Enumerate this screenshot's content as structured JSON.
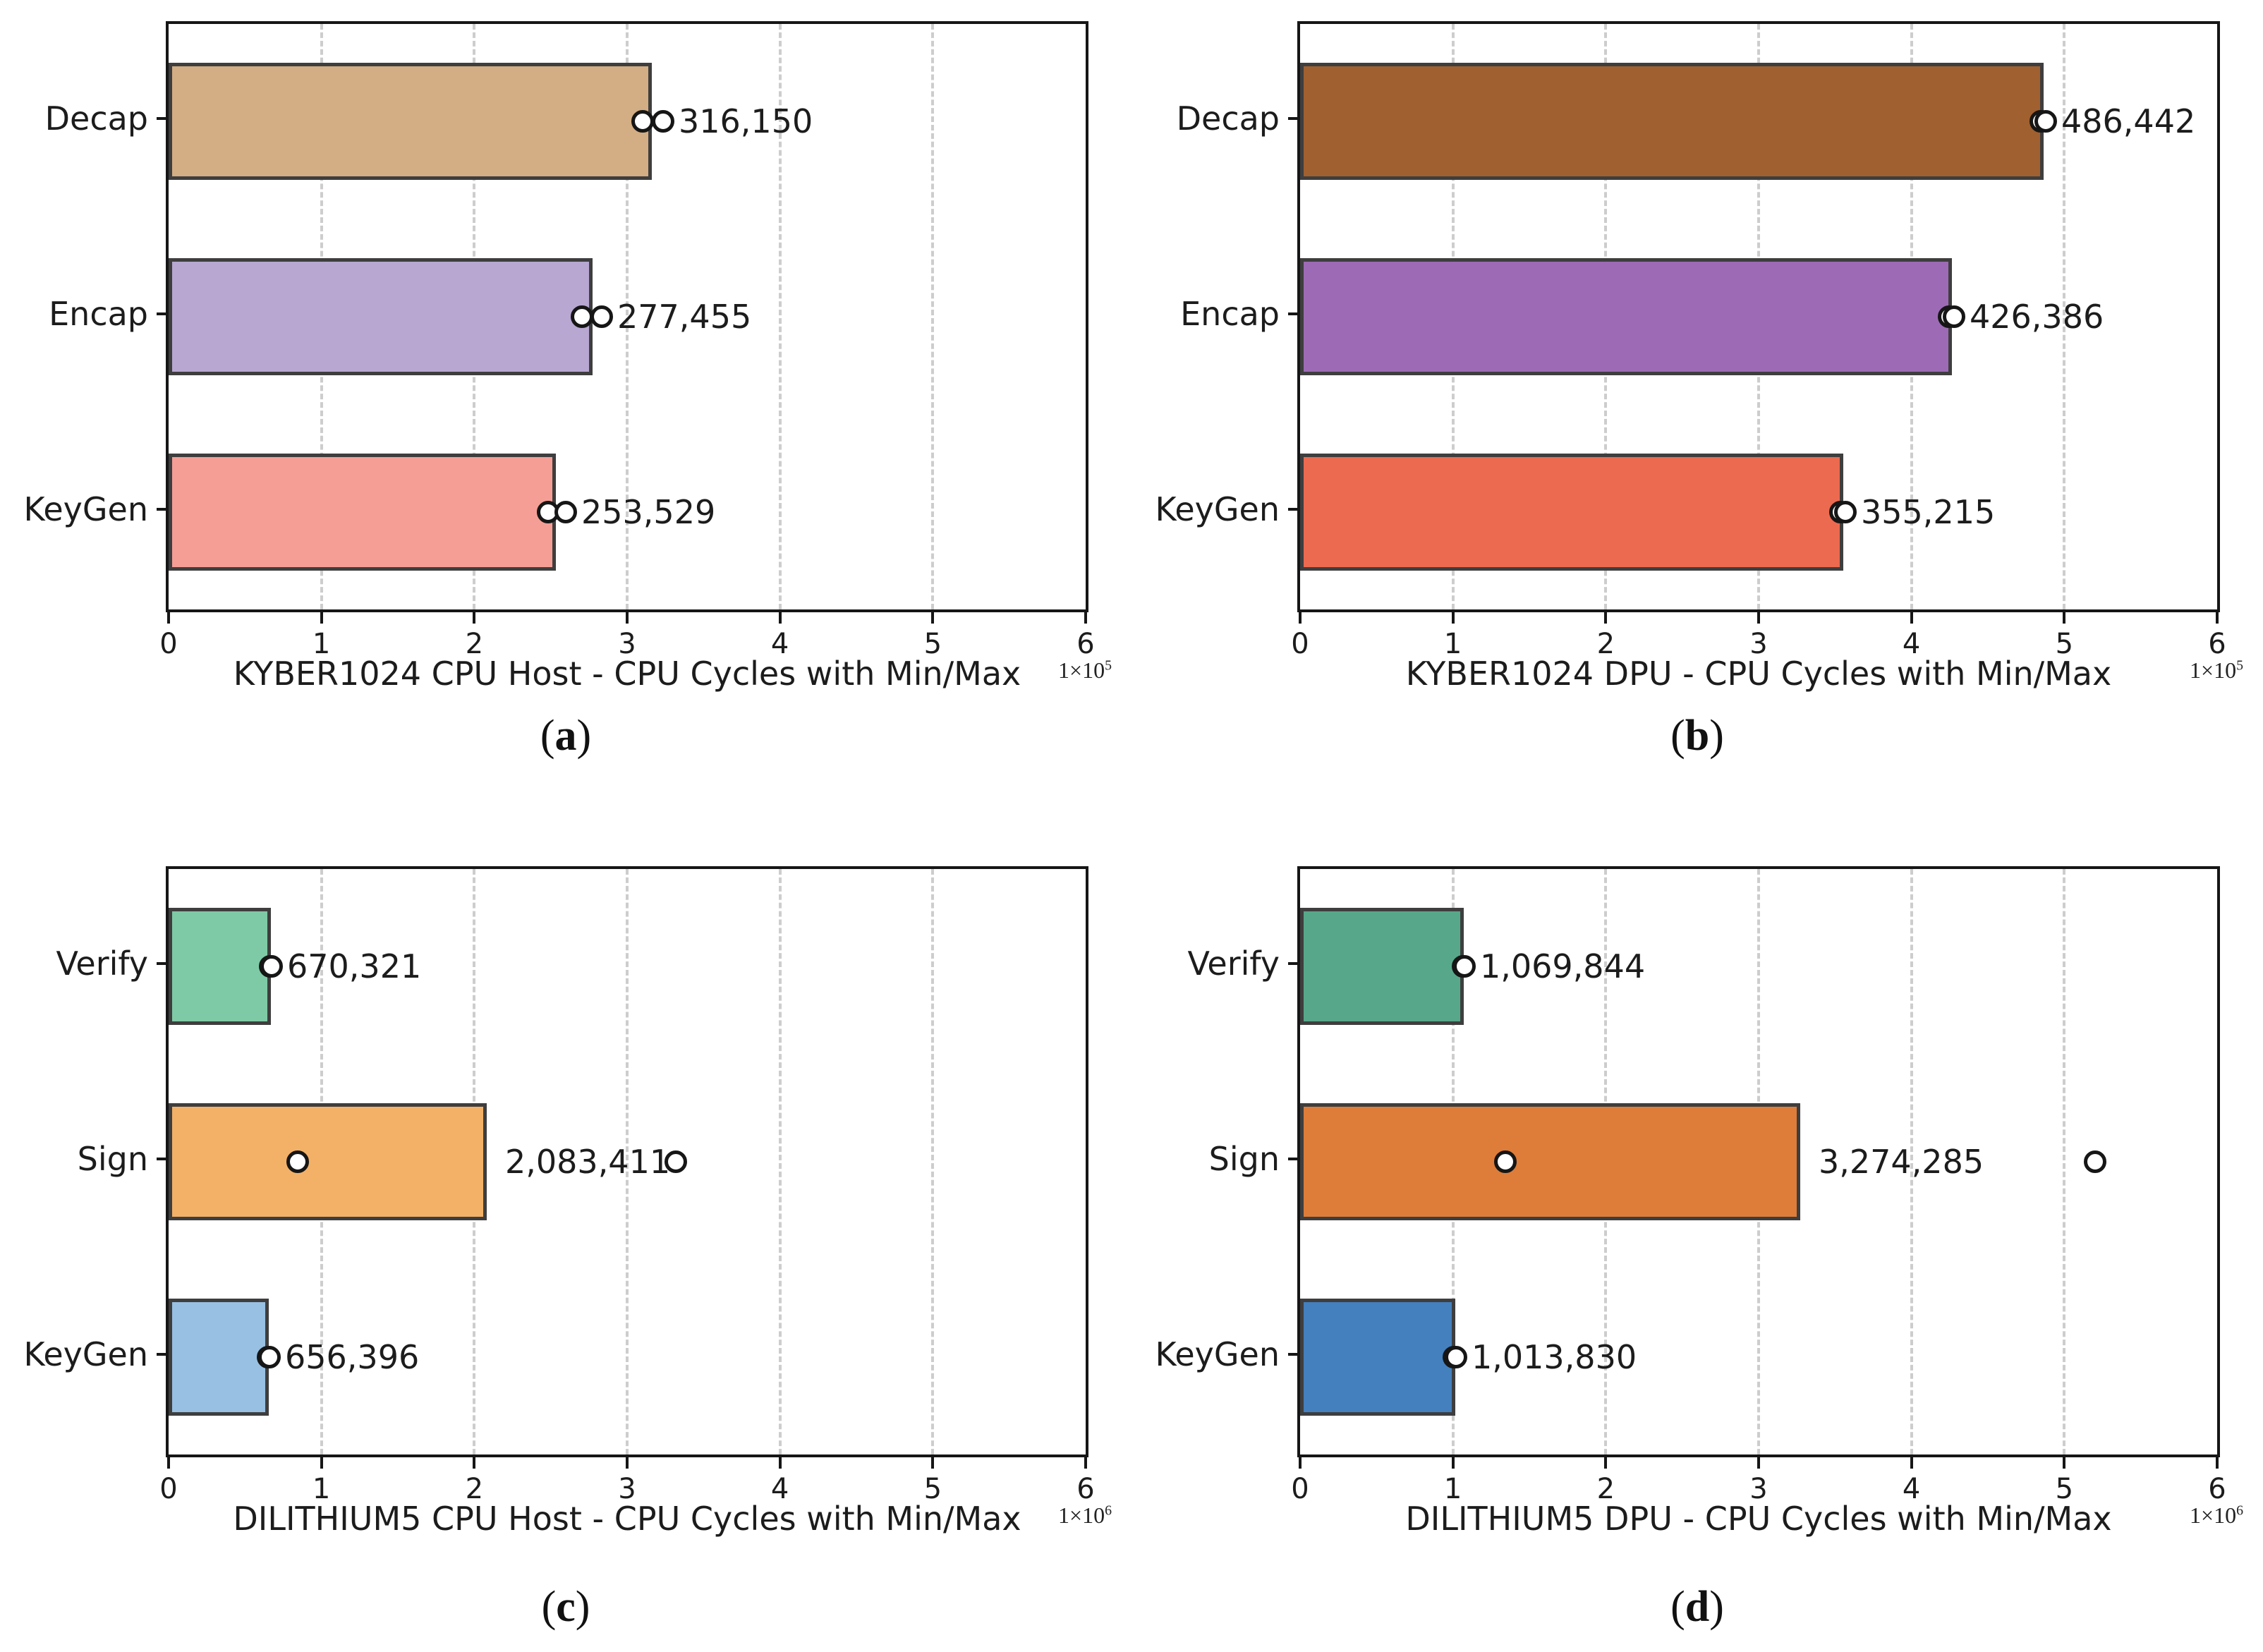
{
  "chart_data": [
    {
      "type": "bar",
      "orientation": "horizontal",
      "title": "KYBER1024 CPU Host - CPU Cycles with Min/Max",
      "xlabel": "KYBER1024 CPU Host - CPU Cycles with Min/Max",
      "ylabel": "",
      "caption": {
        "open": "(",
        "letter": "a",
        "close": ")"
      },
      "exponent": {
        "base": "1×10",
        "power": "5"
      },
      "xlim": [
        0,
        600000
      ],
      "xticks": [
        "0",
        "1",
        "2",
        "3",
        "4",
        "5",
        "6"
      ],
      "xtick_unit": 100000,
      "grid": "vertical-dashed",
      "legend": "none",
      "categories": [
        "Decap",
        "Encap",
        "KeyGen"
      ],
      "bars": [
        {
          "category": "Decap",
          "value": 316150,
          "label": "316,150",
          "min": 310000,
          "max": 323500,
          "color": "#d3ad83"
        },
        {
          "category": "Encap",
          "value": 277455,
          "label": "277,455",
          "min": 270500,
          "max": 283500,
          "color": "#b7a7d1"
        },
        {
          "category": "KeyGen",
          "value": 253529,
          "label": "253,529",
          "min": 248500,
          "max": 260000,
          "color": "#f59e96"
        }
      ]
    },
    {
      "type": "bar",
      "orientation": "horizontal",
      "title": "KYBER1024 DPU - CPU Cycles with Min/Max",
      "xlabel": "KYBER1024 DPU - CPU Cycles with Min/Max",
      "ylabel": "",
      "caption": {
        "open": "(",
        "letter": "b",
        "close": ")"
      },
      "exponent": {
        "base": "1×10",
        "power": "5"
      },
      "xlim": [
        0,
        600000
      ],
      "xticks": [
        "0",
        "1",
        "2",
        "3",
        "4",
        "5",
        "6"
      ],
      "xtick_unit": 100000,
      "grid": "vertical-dashed",
      "legend": "none",
      "categories": [
        "Decap",
        "Encap",
        "KeyGen"
      ],
      "bars": [
        {
          "category": "Decap",
          "value": 486442,
          "label": "486,442",
          "min": 484800,
          "max": 488000,
          "color": "#a1602f"
        },
        {
          "category": "Encap",
          "value": 426386,
          "label": "426,386",
          "min": 424800,
          "max": 428000,
          "color": "#9d6bb5"
        },
        {
          "category": "KeyGen",
          "value": 355215,
          "label": "355,215",
          "min": 353700,
          "max": 356800,
          "color": "#ec6a50"
        }
      ]
    },
    {
      "type": "bar",
      "orientation": "horizontal",
      "title": "DILITHIUM5 CPU Host - CPU Cycles with Min/Max",
      "xlabel": "DILITHIUM5 CPU Host - CPU Cycles with Min/Max",
      "ylabel": "",
      "caption": {
        "open": "(",
        "letter": "c",
        "close": ")"
      },
      "exponent": {
        "base": "1×10",
        "power": "6"
      },
      "xlim": [
        0,
        6000000
      ],
      "xticks": [
        "0",
        "1",
        "2",
        "3",
        "4",
        "5",
        "6"
      ],
      "xtick_unit": 1000000,
      "grid": "vertical-dashed",
      "legend": "none",
      "categories": [
        "Verify",
        "Sign",
        "KeyGen"
      ],
      "bars": [
        {
          "category": "Verify",
          "value": 670321,
          "label": "670,321",
          "min": 666000,
          "max": 674000,
          "color": "#7ecaa6"
        },
        {
          "category": "Sign",
          "value": 2083411,
          "label": "2,083,411",
          "min": 845000,
          "max": 3320000,
          "color": "#f3b167"
        },
        {
          "category": "KeyGen",
          "value": 656396,
          "label": "656,396",
          "min": 652500,
          "max": 660000,
          "color": "#98c0e2"
        }
      ]
    },
    {
      "type": "bar",
      "orientation": "horizontal",
      "title": "DILITHIUM5 DPU - CPU Cycles with Min/Max",
      "xlabel": "DILITHIUM5 DPU - CPU Cycles with Min/Max",
      "ylabel": "",
      "caption": {
        "open": "(",
        "letter": "d",
        "close": ")"
      },
      "exponent": {
        "base": "1×10",
        "power": "6"
      },
      "xlim": [
        0,
        6000000
      ],
      "xticks": [
        "0",
        "1",
        "2",
        "3",
        "4",
        "5",
        "6"
      ],
      "xtick_unit": 1000000,
      "grid": "vertical-dashed",
      "legend": "none",
      "categories": [
        "Verify",
        "Sign",
        "KeyGen"
      ],
      "bars": [
        {
          "category": "Verify",
          "value": 1069844,
          "label": "1,069,844",
          "min": 1064000,
          "max": 1075000,
          "color": "#57a88a"
        },
        {
          "category": "Sign",
          "value": 3274285,
          "label": "3,274,285",
          "min": 1345000,
          "max": 5200000,
          "color": "#dd7d39"
        },
        {
          "category": "KeyGen",
          "value": 1013830,
          "label": "1,013,830",
          "min": 1008000,
          "max": 1019000,
          "color": "#4480bd"
        }
      ]
    }
  ],
  "style": {
    "bar_edge_color": "#3e3e3e",
    "marker_fill": "#ffffff",
    "marker_edge": "#161616",
    "gridline_color": "#cdcdcd",
    "spine_color": "#161616",
    "background": "#ffffff"
  }
}
